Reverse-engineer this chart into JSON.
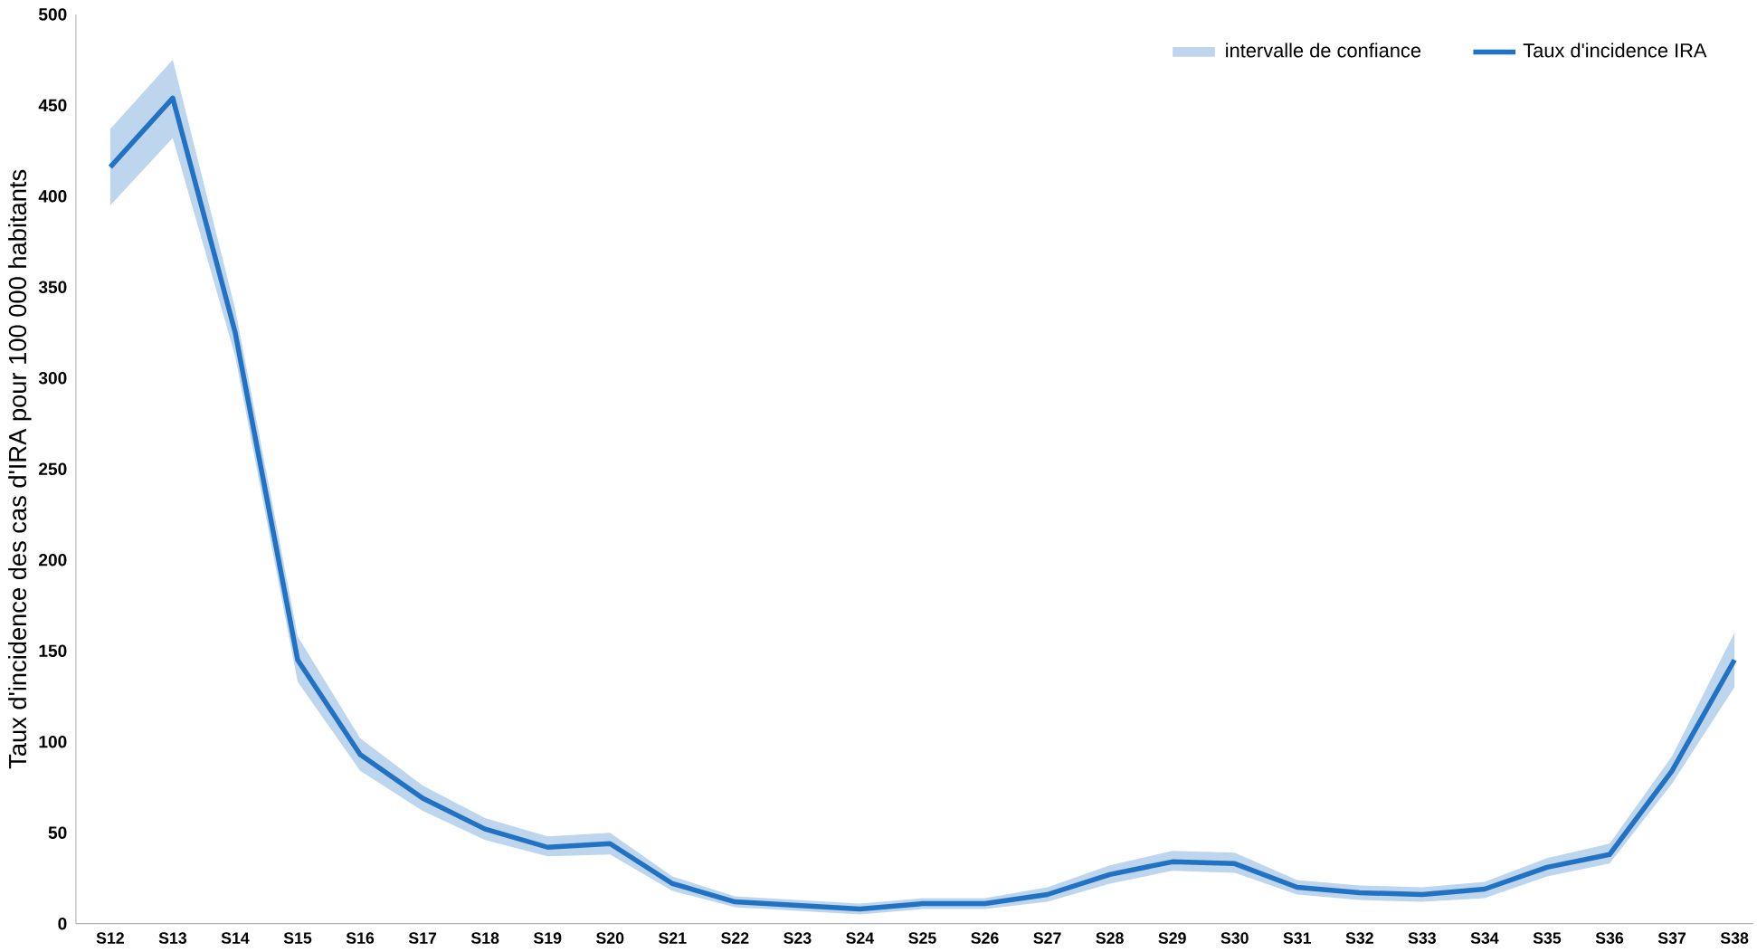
{
  "chart_data": {
    "type": "line",
    "ylabel": "Taux d'incidence des cas d'IRA pour 100 000 habitants",
    "categories": [
      "S12",
      "S13",
      "S14",
      "S15",
      "S16",
      "S17",
      "S18",
      "S19",
      "S20",
      "S21",
      "S22",
      "S23",
      "S24",
      "S25",
      "S26",
      "S27",
      "S28",
      "S29",
      "S30",
      "S31",
      "S32",
      "S33",
      "S34",
      "S35",
      "S36",
      "S37",
      "S38"
    ],
    "series": [
      {
        "name": "Taux d'incidence IRA",
        "color": "#2272c3",
        "values": [
          416,
          454,
          325,
          145,
          93,
          69,
          52,
          42,
          44,
          22,
          12,
          10,
          8,
          11,
          11,
          16,
          27,
          34,
          33,
          20,
          17,
          16,
          19,
          31,
          38,
          84,
          145
        ],
        "lower": [
          395,
          432,
          312,
          133,
          84,
          62,
          46,
          37,
          38,
          18,
          9,
          7,
          5,
          8,
          8,
          12,
          22,
          29,
          28,
          16,
          13,
          12,
          14,
          26,
          33,
          77,
          130
        ],
        "upper": [
          437,
          475,
          338,
          158,
          102,
          76,
          58,
          48,
          50,
          26,
          15,
          13,
          11,
          14,
          14,
          20,
          32,
          40,
          39,
          24,
          21,
          20,
          23,
          36,
          44,
          92,
          160
        ]
      }
    ],
    "annotations": [
      "intervalle de confiance"
    ],
    "ylim": [
      0,
      500
    ],
    "yticks": [
      0,
      50,
      100,
      150,
      200,
      250,
      300,
      350,
      400,
      450,
      500
    ],
    "legend": "top right",
    "marker": "none",
    "line_style": "solid"
  }
}
